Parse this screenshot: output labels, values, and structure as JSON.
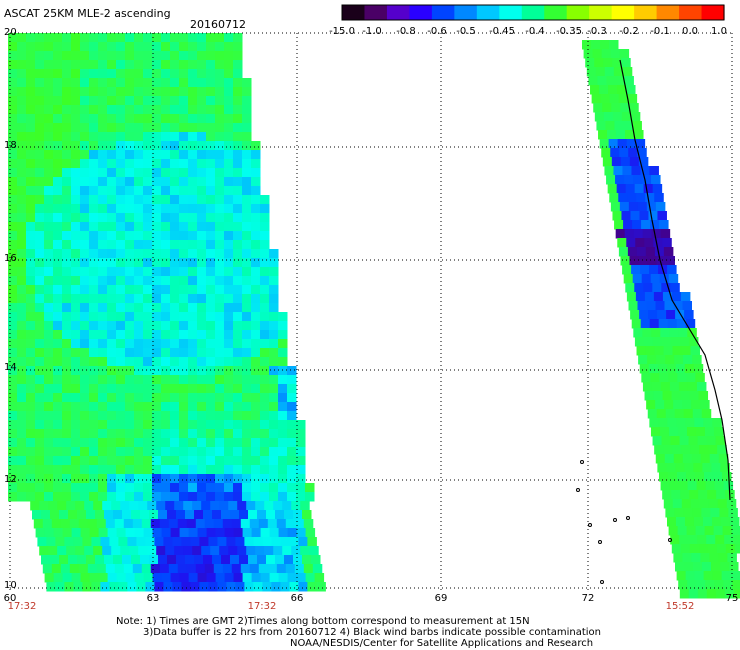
{
  "header": {
    "title": "ASCAT 25KM MLE-2 ascending",
    "date": "20160712"
  },
  "colorbar": {
    "labels": [
      "-15.0",
      "-1.0",
      "-0.8",
      "-0.6",
      "-0.5",
      "-0.45",
      "-0.4",
      "-0.35",
      "-0.3",
      "-0.2",
      "-0.1",
      "0.0",
      "1.0"
    ],
    "colors": [
      "#1a001a",
      "#4a0066",
      "#5500cc",
      "#2a00ff",
      "#0044ff",
      "#0088ff",
      "#00c8ff",
      "#00ffee",
      "#00ff99",
      "#33ff33",
      "#88ff00",
      "#ccff00",
      "#ffff00",
      "#ffcc00",
      "#ff8800",
      "#ff4400",
      "#ff0000"
    ]
  },
  "axes": {
    "y_ticks": [
      "20",
      "18",
      "16",
      "14",
      "12",
      "10"
    ],
    "x_ticks": [
      "60",
      "63",
      "66",
      "69",
      "72",
      "75"
    ],
    "time_labels": [
      "17:32",
      "17:32",
      "15:52"
    ]
  },
  "notes": {
    "line1": "Note: 1) Times are GMT 2)Times along bottom correspond to measurement at 15N",
    "line2": "3)Data buffer is 22 hrs from 20160712 4) Black wind barbs indicate possible contamination",
    "line3": "NOAA/NESDIS/Center for Satellite Applications and Research"
  },
  "colors": {
    "green": "#22ff44",
    "cyan": "#00ffee",
    "blue": "#0033ff",
    "purple": "#4a0080",
    "gridline": "#000000",
    "time_label": "#c0392b"
  }
}
